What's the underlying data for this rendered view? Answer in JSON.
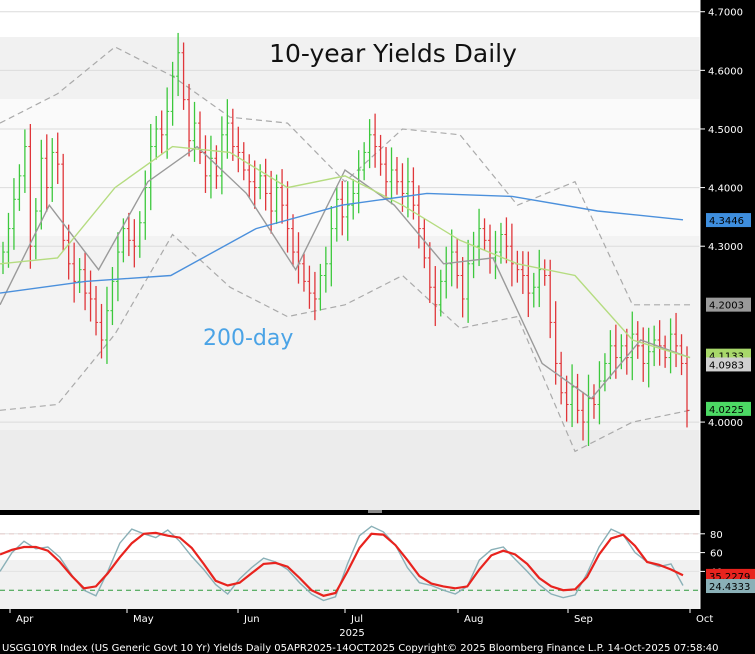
{
  "chart_data": [
    {
      "type": "ohlc",
      "title": "10-year Yields Daily",
      "annotation": "200-day",
      "x_tick_labels": [
        "Apr",
        "May",
        "Jun",
        "Jul",
        "Aug",
        "Sep",
        "Oct"
      ],
      "year_label": "2025",
      "y_axis": {
        "position": "right",
        "range": [
          3.85,
          4.72
        ],
        "ticks": [
          "4.7000",
          "4.6000",
          "4.5000",
          "4.4000",
          "4.3000",
          "4.0000"
        ]
      },
      "value_tags": [
        {
          "label": "4.3446",
          "value": 4.3446,
          "color": "#3e8ede"
        },
        {
          "label": "4.2003",
          "value": 4.2003,
          "color": "#9a9a9a"
        },
        {
          "label": "4.1133",
          "value": 4.1133,
          "color": "#a8d86a"
        },
        {
          "label": "4.0983",
          "value": 4.0983,
          "color": "#d0d0d0"
        },
        {
          "label": "4.0225",
          "value": 4.0225,
          "color": "#4cd964"
        }
      ],
      "close": [
        4.29,
        4.33,
        4.38,
        4.42,
        4.47,
        4.3,
        4.36,
        4.45,
        4.4,
        4.46,
        4.44,
        4.31,
        4.27,
        4.24,
        4.26,
        4.22,
        4.21,
        4.17,
        4.14,
        4.19,
        4.24,
        4.29,
        4.33,
        4.31,
        4.3,
        4.34,
        4.4,
        4.47,
        4.5,
        4.49,
        4.53,
        4.59,
        4.63,
        4.55,
        4.48,
        4.51,
        4.46,
        4.42,
        4.45,
        4.42,
        4.49,
        4.51,
        4.47,
        4.46,
        4.43,
        4.41,
        4.4,
        4.42,
        4.39,
        4.36,
        4.4,
        4.37,
        4.33,
        4.29,
        4.27,
        4.24,
        4.22,
        4.21,
        4.25,
        4.27,
        4.33,
        4.38,
        4.35,
        4.37,
        4.39,
        4.43,
        4.46,
        4.49,
        4.47,
        4.44,
        4.41,
        4.43,
        4.41,
        4.39,
        4.41,
        4.37,
        4.33,
        4.28,
        4.23,
        4.2,
        4.24,
        4.27,
        4.29,
        4.25,
        4.21,
        4.27,
        4.3,
        4.33,
        4.31,
        4.28,
        4.29,
        4.32,
        4.3,
        4.27,
        4.26,
        4.25,
        4.22,
        4.23,
        4.26,
        4.25,
        4.17,
        4.1,
        4.05,
        4.03,
        4.06,
        4.02,
        4.0,
        4.04,
        4.03,
        4.07,
        4.1,
        4.13,
        4.11,
        4.13,
        4.11,
        4.15,
        4.13,
        4.1,
        4.12,
        4.14,
        4.13,
        4.11,
        4.15,
        4.13,
        4.1,
        4.02
      ],
      "ma_200": [
        4.22,
        4.24,
        4.25,
        4.33,
        4.37,
        4.39,
        4.385,
        4.36,
        4.345
      ],
      "ma_50": [
        4.27,
        4.28,
        4.4,
        4.47,
        4.46,
        4.4,
        4.42,
        4.37,
        4.31,
        4.27,
        4.25,
        4.14,
        4.11
      ],
      "ma_20": [
        4.2,
        4.37,
        4.26,
        4.41,
        4.47,
        4.39,
        4.26,
        4.43,
        4.37,
        4.27,
        4.28,
        4.1,
        4.04,
        4.14,
        4.11
      ],
      "bollinger_upper": [
        4.51,
        4.56,
        4.64,
        4.59,
        4.52,
        4.51,
        4.41,
        4.5,
        4.49,
        4.37,
        4.41,
        4.2,
        4.2
      ],
      "bollinger_lower": [
        4.02,
        4.03,
        4.15,
        4.32,
        4.23,
        4.18,
        4.2,
        4.25,
        4.16,
        4.18,
        3.95,
        4.0,
        4.02
      ]
    },
    {
      "type": "line",
      "y_axis": {
        "position": "right",
        "range": [
          0,
          100
        ],
        "ticks": [
          "80",
          "60",
          "40"
        ],
        "upper_band": 80,
        "lower_band": 20
      },
      "value_tags": [
        {
          "label": "35.2279",
          "value": 35.2279,
          "color": "#e8231e"
        },
        {
          "label": "24.4333",
          "value": 24.4333,
          "color": "#8ab0b7"
        }
      ],
      "series": [
        {
          "color": "#e8231e",
          "values": [
            58,
            63,
            66,
            66,
            62,
            50,
            35,
            22,
            24,
            38,
            55,
            70,
            80,
            81,
            78,
            76,
            65,
            48,
            30,
            25,
            28,
            38,
            48,
            49,
            45,
            33,
            20,
            14,
            17,
            40,
            65,
            80,
            79,
            68,
            52,
            35,
            27,
            24,
            22,
            24,
            42,
            57,
            62,
            58,
            48,
            33,
            24,
            20,
            21,
            34,
            58,
            75,
            79,
            67,
            50,
            47,
            42,
            36
          ]
        },
        {
          "color": "#8ab0b7",
          "values": [
            40,
            60,
            72,
            64,
            66,
            55,
            36,
            20,
            14,
            40,
            70,
            85,
            80,
            76,
            84,
            72,
            56,
            42,
            26,
            16,
            32,
            44,
            54,
            50,
            42,
            28,
            16,
            9,
            13,
            48,
            78,
            88,
            82,
            68,
            44,
            28,
            25,
            20,
            16,
            24,
            52,
            63,
            66,
            53,
            40,
            26,
            16,
            12,
            15,
            38,
            66,
            85,
            79,
            60,
            50,
            45,
            48,
            25
          ]
        }
      ]
    }
  ],
  "footer": "USGG10YR Index (US Generic Govt 10 Yr) Yields Daily 05APR2025-14OCT2025  Copyright© 2025 Bloomberg Finance L.P.   14-Oct-2025 07:58:40"
}
